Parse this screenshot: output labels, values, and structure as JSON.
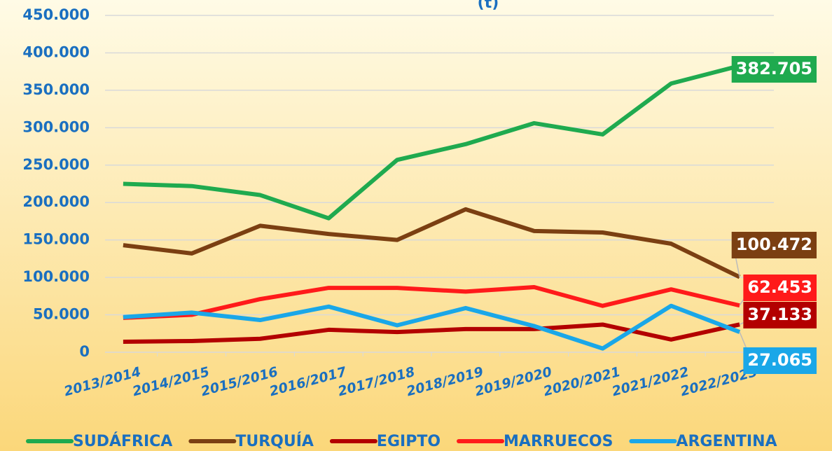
{
  "chart_data": {
    "type": "line",
    "title": "(t)",
    "categories": [
      "2013/2014",
      "2014/2015",
      "2015/2016",
      "2016/2017",
      "2017/2018",
      "2018/2019",
      "2019/2020",
      "2020/2021",
      "2021/2022",
      "2022/2023"
    ],
    "series": [
      {
        "name": "SUDÁFRICA",
        "color": "#1faa4f",
        "values": [
          225000,
          222000,
          210000,
          179000,
          257000,
          278000,
          306000,
          291000,
          359000,
          382705
        ],
        "value_labels": [
          null,
          null,
          null,
          null,
          null,
          null,
          null,
          null,
          null,
          "382.705"
        ]
      },
      {
        "name": "TURQUÍA",
        "color": "#7b3f12",
        "values": [
          143000,
          132000,
          169000,
          158000,
          150000,
          191000,
          162000,
          160000,
          145000,
          100472
        ],
        "value_labels": [
          null,
          null,
          null,
          null,
          null,
          null,
          null,
          null,
          null,
          "100.472"
        ]
      },
      {
        "name": "EGIPTO",
        "color": "#b30000",
        "values": [
          14000,
          15000,
          18000,
          30000,
          27000,
          31000,
          31000,
          37000,
          17000,
          37133
        ],
        "value_labels": [
          null,
          null,
          null,
          null,
          null,
          null,
          null,
          null,
          null,
          "37.133"
        ]
      },
      {
        "name": "MARRUECOS",
        "color": "#ff1a1a",
        "values": [
          46000,
          50000,
          71000,
          86000,
          86000,
          81000,
          87000,
          62000,
          84000,
          62453
        ],
        "value_labels": [
          null,
          null,
          null,
          null,
          null,
          null,
          null,
          null,
          null,
          "62.453"
        ]
      },
      {
        "name": "ARGENTINA",
        "color": "#1aa7e8",
        "values": [
          47000,
          53000,
          43000,
          61000,
          36000,
          59000,
          35000,
          5000,
          62000,
          27065
        ],
        "value_labels": [
          null,
          null,
          null,
          null,
          null,
          null,
          null,
          null,
          null,
          "27.065"
        ]
      }
    ],
    "ylim": [
      0,
      450000
    ],
    "yticks": [
      0,
      {
        "value": 50000,
        "label": "50.000"
      },
      {
        "value": 100000,
        "label": "100.000"
      },
      {
        "value": 150000,
        "label": "150.000"
      },
      {
        "value": 200000,
        "label": "200.000"
      },
      {
        "value": 250000,
        "label": "250.000"
      },
      {
        "value": 300000,
        "label": "300.000"
      },
      {
        "value": 350000,
        "label": "350.000"
      },
      {
        "value": 400000,
        "label": "400.000"
      },
      {
        "value": 450000,
        "label": "450.000"
      }
    ],
    "grid": true,
    "legend": "bottom"
  }
}
